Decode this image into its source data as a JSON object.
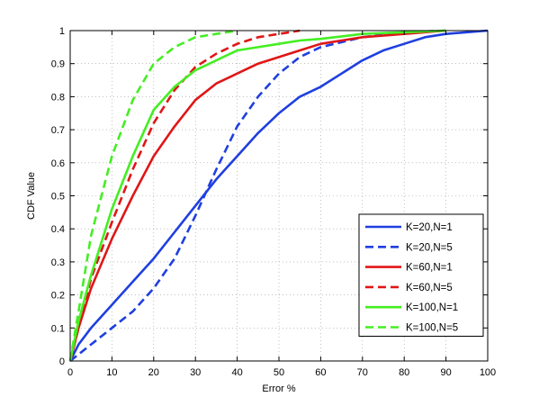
{
  "chart_data": {
    "type": "line",
    "title": "",
    "xlabel": "Error %",
    "ylabel": "CDF Value",
    "xlim": [
      0,
      100
    ],
    "ylim": [
      0,
      1
    ],
    "xticks": [
      0,
      10,
      20,
      30,
      40,
      50,
      60,
      70,
      80,
      90,
      100
    ],
    "yticks": [
      0,
      0.1,
      0.2,
      0.3,
      0.4,
      0.5,
      0.6,
      0.7,
      0.8,
      0.9,
      1
    ],
    "grid": true,
    "legend": "bottom-right",
    "series": [
      {
        "name": "K=20,N=1",
        "color": "#1f3fe0",
        "dash": "solid",
        "points": [
          [
            0,
            0
          ],
          [
            2,
            0.05
          ],
          [
            5,
            0.1
          ],
          [
            10,
            0.17
          ],
          [
            15,
            0.24
          ],
          [
            20,
            0.31
          ],
          [
            25,
            0.39
          ],
          [
            30,
            0.47
          ],
          [
            35,
            0.55
          ],
          [
            40,
            0.62
          ],
          [
            45,
            0.69
          ],
          [
            50,
            0.75
          ],
          [
            55,
            0.8
          ],
          [
            60,
            0.83
          ],
          [
            65,
            0.87
          ],
          [
            70,
            0.91
          ],
          [
            75,
            0.94
          ],
          [
            80,
            0.96
          ],
          [
            85,
            0.98
          ],
          [
            90,
            0.99
          ],
          [
            95,
            0.995
          ],
          [
            100,
            1
          ]
        ]
      },
      {
        "name": "K=20,N=5",
        "color": "#1f3fe0",
        "dash": "dashed",
        "points": [
          [
            0,
            0
          ],
          [
            5,
            0.05
          ],
          [
            10,
            0.1
          ],
          [
            15,
            0.15
          ],
          [
            20,
            0.22
          ],
          [
            25,
            0.31
          ],
          [
            30,
            0.44
          ],
          [
            35,
            0.58
          ],
          [
            40,
            0.71
          ],
          [
            45,
            0.8
          ],
          [
            50,
            0.87
          ],
          [
            55,
            0.92
          ],
          [
            60,
            0.95
          ],
          [
            70,
            0.98
          ],
          [
            80,
            0.995
          ],
          [
            90,
            1
          ]
        ]
      },
      {
        "name": "K=60,N=1",
        "color": "#e01616",
        "dash": "solid",
        "points": [
          [
            0,
            0
          ],
          [
            2,
            0.1
          ],
          [
            5,
            0.22
          ],
          [
            10,
            0.37
          ],
          [
            15,
            0.5
          ],
          [
            20,
            0.62
          ],
          [
            25,
            0.71
          ],
          [
            30,
            0.79
          ],
          [
            35,
            0.84
          ],
          [
            40,
            0.87
          ],
          [
            45,
            0.9
          ],
          [
            50,
            0.92
          ],
          [
            55,
            0.94
          ],
          [
            60,
            0.96
          ],
          [
            65,
            0.97
          ],
          [
            70,
            0.98
          ],
          [
            80,
            0.99
          ],
          [
            90,
            1
          ]
        ]
      },
      {
        "name": "K=60,N=5",
        "color": "#e01616",
        "dash": "dashed",
        "points": [
          [
            0,
            0
          ],
          [
            2,
            0.1
          ],
          [
            5,
            0.25
          ],
          [
            10,
            0.42
          ],
          [
            15,
            0.58
          ],
          [
            20,
            0.72
          ],
          [
            25,
            0.82
          ],
          [
            30,
            0.89
          ],
          [
            35,
            0.93
          ],
          [
            40,
            0.96
          ],
          [
            45,
            0.98
          ],
          [
            50,
            0.99
          ],
          [
            55,
            1
          ]
        ]
      },
      {
        "name": "K=100,N=1",
        "color": "#44ee22",
        "dash": "solid",
        "points": [
          [
            0,
            0
          ],
          [
            2,
            0.12
          ],
          [
            5,
            0.26
          ],
          [
            10,
            0.46
          ],
          [
            15,
            0.62
          ],
          [
            20,
            0.76
          ],
          [
            25,
            0.83
          ],
          [
            30,
            0.88
          ],
          [
            35,
            0.91
          ],
          [
            40,
            0.94
          ],
          [
            45,
            0.95
          ],
          [
            50,
            0.96
          ],
          [
            55,
            0.97
          ],
          [
            60,
            0.975
          ],
          [
            70,
            0.99
          ],
          [
            80,
            0.995
          ],
          [
            90,
            1
          ]
        ]
      },
      {
        "name": "K=100,N=5",
        "color": "#44ee22",
        "dash": "dashed",
        "points": [
          [
            0,
            0
          ],
          [
            2,
            0.15
          ],
          [
            5,
            0.38
          ],
          [
            10,
            0.62
          ],
          [
            15,
            0.79
          ],
          [
            20,
            0.9
          ],
          [
            25,
            0.95
          ],
          [
            30,
            0.98
          ],
          [
            35,
            0.99
          ],
          [
            40,
            1
          ]
        ]
      }
    ]
  }
}
